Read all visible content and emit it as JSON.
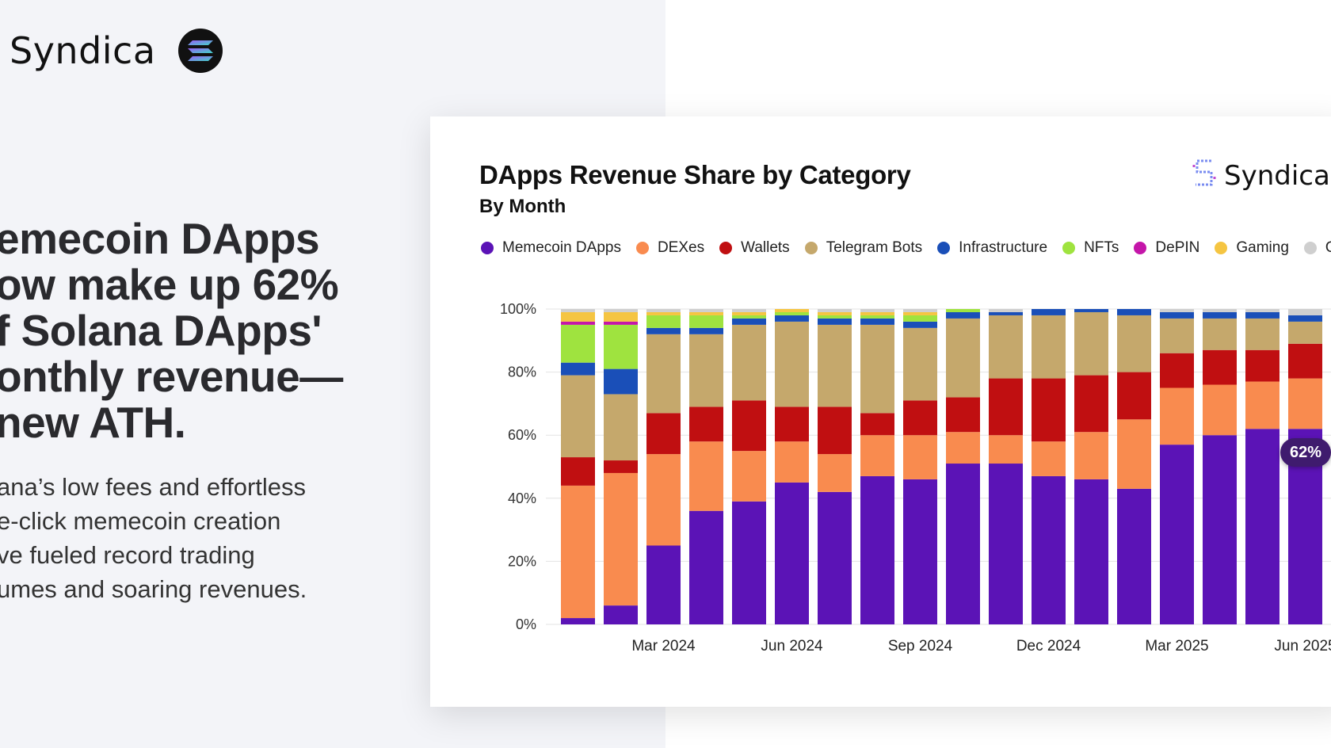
{
  "brand": {
    "name": "Syndica",
    "logo_icon": "solana-icon"
  },
  "headline": "emecoin DApps\now make up 62%\nf Solana DApps'\nonthly revenue—\nnew ATH.",
  "subtext": "ana’s low fees and effortless\ne-click memecoin creation\nve fueled record trading\numes and soaring revenues.",
  "card": {
    "brand_name": "Syndica",
    "highlight_badge": "62%"
  },
  "chart_data": {
    "type": "bar",
    "stacked": true,
    "normalized": true,
    "title": "DApps Revenue Share by Category",
    "subtitle": "By Month",
    "xlabel": "",
    "ylabel": "",
    "ylim": [
      0,
      100
    ],
    "y_ticks": [
      "0%",
      "20%",
      "40%",
      "60%",
      "80%",
      "100%"
    ],
    "x_tick_labels": [
      {
        "index": 2,
        "label": "Mar 2024"
      },
      {
        "index": 5,
        "label": "Jun 2024"
      },
      {
        "index": 8,
        "label": "Sep 2024"
      },
      {
        "index": 11,
        "label": "Dec 2024"
      },
      {
        "index": 14,
        "label": "Mar 2025"
      },
      {
        "index": 17,
        "label": "Jun 2025"
      }
    ],
    "categories": [
      "Jan 2024",
      "Feb 2024",
      "Mar 2024",
      "Apr 2024",
      "May 2024",
      "Jun 2024",
      "Jul 2024",
      "Aug 2024",
      "Sep 2024",
      "Oct 2024",
      "Nov 2024",
      "Dec 2024",
      "Jan 2025",
      "Feb 2025",
      "Mar 2025",
      "Apr 2025",
      "May 2025",
      "Jun 2025"
    ],
    "legend": [
      "Memecoin DApps",
      "DEXes",
      "Wallets",
      "Telegram Bots",
      "Infrastructure",
      "NFTs",
      "DePIN",
      "Gaming",
      "Ot"
    ],
    "series": [
      {
        "name": "Memecoin DApps",
        "color": "#5b13b6",
        "values": [
          2,
          6,
          25,
          36,
          39,
          45,
          42,
          47,
          46,
          51,
          51,
          47,
          46,
          43,
          57,
          60,
          62,
          62
        ]
      },
      {
        "name": "DEXes",
        "color": "#f98b4f",
        "values": [
          42,
          42,
          29,
          22,
          16,
          13,
          12,
          13,
          14,
          10,
          9,
          11,
          15,
          22,
          18,
          16,
          15,
          16
        ]
      },
      {
        "name": "Wallets",
        "color": "#c00f11",
        "values": [
          9,
          4,
          13,
          11,
          16,
          11,
          15,
          7,
          11,
          11,
          18,
          20,
          18,
          15,
          11,
          11,
          10,
          11
        ]
      },
      {
        "name": "Telegram Bots",
        "color": "#c5a86c",
        "values": [
          26,
          21,
          25,
          23,
          24,
          27,
          26,
          28,
          23,
          25,
          20,
          20,
          20,
          18,
          11,
          10,
          10,
          7
        ]
      },
      {
        "name": "Infrastructure",
        "color": "#1a4fb8",
        "values": [
          4,
          8,
          2,
          2,
          2,
          2,
          2,
          2,
          2,
          2,
          1,
          2,
          1,
          2,
          2,
          2,
          2,
          2
        ]
      },
      {
        "name": "NFTs",
        "color": "#9fe33f",
        "values": [
          12,
          14,
          4,
          4,
          1,
          1,
          1,
          1,
          2,
          1,
          0,
          0,
          0,
          0,
          0,
          0,
          0,
          0
        ]
      },
      {
        "name": "DePIN",
        "color": "#c416a9",
        "values": [
          1,
          1,
          0,
          0,
          0,
          0,
          0,
          0,
          0,
          0,
          0,
          0,
          0,
          0,
          0,
          0,
          0,
          0
        ]
      },
      {
        "name": "Gaming",
        "color": "#f5c542",
        "values": [
          3,
          3,
          1,
          1,
          1,
          1,
          1,
          1,
          1,
          0,
          0,
          0,
          0,
          0,
          0,
          0,
          0,
          0
        ]
      },
      {
        "name": "Ot",
        "color": "#cfcfcf",
        "values": [
          1,
          1,
          1,
          1,
          1,
          0,
          1,
          1,
          1,
          0,
          1,
          0,
          0,
          0,
          1,
          1,
          1,
          2
        ]
      }
    ]
  }
}
